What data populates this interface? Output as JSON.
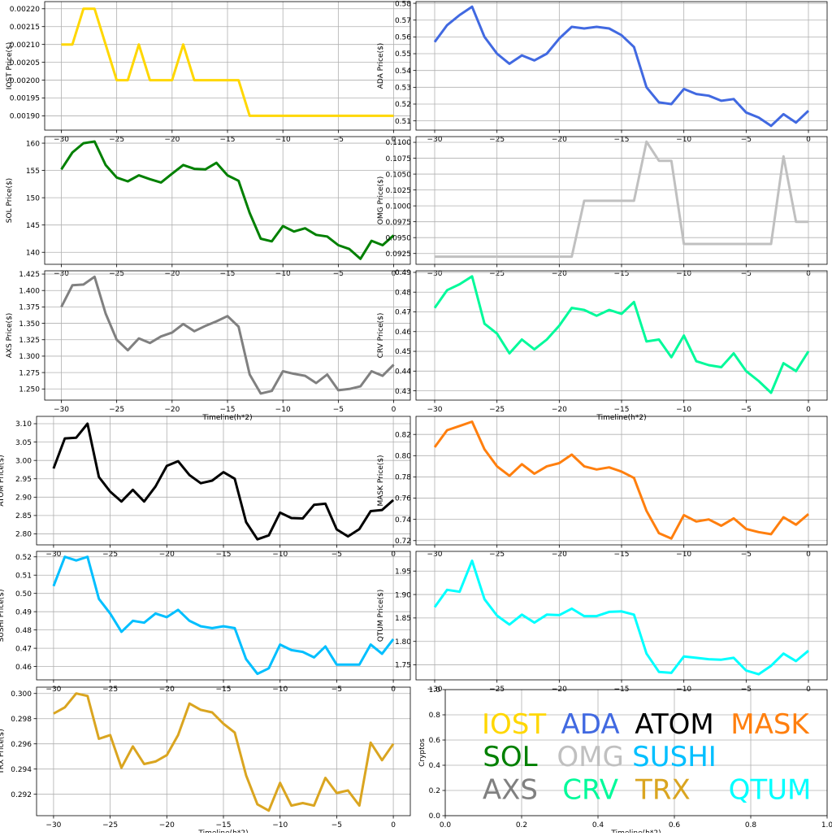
{
  "chart_data": [
    {
      "type": "line",
      "ylabel": "IOST Price($)",
      "xlabel": "",
      "color": "#FFD700",
      "xlim": [
        -31.5,
        1.5
      ],
      "ylim": [
        0.00186,
        0.00222
      ],
      "xticks": [
        -30,
        -25,
        -20,
        -15,
        -10,
        -5,
        0
      ],
      "xtick_labels": [
        "−30",
        "−25",
        "−20",
        "−15",
        "−10",
        "−5",
        "0"
      ],
      "yticks": [
        0.0019,
        0.00195,
        0.002,
        0.00205,
        0.0021,
        0.00215,
        0.0022
      ],
      "ytick_labels": [
        "0.00190",
        "0.00195",
        "0.00200",
        "0.00205",
        "0.00210",
        "0.00215",
        "0.00220"
      ],
      "x": [
        -30,
        -29,
        -28,
        -27,
        -26,
        -25,
        -24,
        -23,
        -22,
        -21,
        -20,
        -19,
        -18,
        -17,
        -16,
        -15,
        -14,
        -13,
        -12,
        -11,
        -10,
        -9,
        -8,
        -7,
        -6,
        -5,
        -4,
        -3,
        -2,
        -1,
        0
      ],
      "y": [
        0.0021,
        0.0021,
        0.0022,
        0.0022,
        0.0021,
        0.002,
        0.002,
        0.0021,
        0.002,
        0.002,
        0.002,
        0.0021,
        0.002,
        0.002,
        0.002,
        0.002,
        0.002,
        0.0019,
        0.0019,
        0.0019,
        0.0019,
        0.0019,
        0.0019,
        0.0019,
        0.0019,
        0.0019,
        0.0019,
        0.0019,
        0.0019,
        0.0019,
        0.0019
      ]
    },
    {
      "type": "line",
      "ylabel": "ADA Price($)",
      "xlabel": "",
      "color": "#4169E1",
      "xlim": [
        -31.5,
        1.5
      ],
      "ylim": [
        0.5045,
        0.581
      ],
      "xticks": [
        -30,
        -25,
        -20,
        -15,
        -10,
        -5,
        0
      ],
      "xtick_labels": [
        "−30",
        "−25",
        "−20",
        "−15",
        "−10",
        "−5",
        "0"
      ],
      "yticks": [
        0.51,
        0.52,
        0.53,
        0.54,
        0.55,
        0.56,
        0.57,
        0.58
      ],
      "ytick_labels": [
        "0.51",
        "0.52",
        "0.53",
        "0.54",
        "0.55",
        "0.56",
        "0.57",
        "0.58"
      ],
      "x": [
        -30,
        -29,
        -28,
        -27,
        -26,
        -25,
        -24,
        -23,
        -22,
        -21,
        -20,
        -19,
        -18,
        -17,
        -16,
        -15,
        -14,
        -13,
        -12,
        -11,
        -10,
        -9,
        -8,
        -7,
        -6,
        -5,
        -4,
        -3,
        -2,
        -1,
        0
      ],
      "y": [
        0.557,
        0.567,
        0.573,
        0.578,
        0.56,
        0.55,
        0.544,
        0.549,
        0.546,
        0.55,
        0.559,
        0.566,
        0.565,
        0.566,
        0.565,
        0.561,
        0.554,
        0.53,
        0.521,
        0.52,
        0.529,
        0.526,
        0.525,
        0.522,
        0.523,
        0.515,
        0.512,
        0.507,
        0.514,
        0.509,
        0.516
      ]
    },
    {
      "type": "line",
      "ylabel": "SOL Price($)",
      "xlabel": "",
      "color": "#008000",
      "xlim": [
        -31.5,
        1.5
      ],
      "ylim": [
        137.8,
        161.2
      ],
      "xticks": [
        -30,
        -25,
        -20,
        -15,
        -10,
        -5,
        0
      ],
      "xtick_labels": [
        "−30",
        "−25",
        "−20",
        "−15",
        "−10",
        "−5",
        "0"
      ],
      "yticks": [
        140,
        145,
        150,
        155,
        160
      ],
      "ytick_labels": [
        "140",
        "145",
        "150",
        "155",
        "160"
      ],
      "x": [
        -30,
        -29,
        -28,
        -27,
        -26,
        -25,
        -24,
        -23,
        -22,
        -21,
        -20,
        -19,
        -18,
        -17,
        -16,
        -15,
        -14,
        -13,
        -12,
        -11,
        -10,
        -9,
        -8,
        -7,
        -6,
        -5,
        -4,
        -3,
        -2,
        -1,
        0
      ],
      "y": [
        155.2,
        158.3,
        160.0,
        160.3,
        156.0,
        153.7,
        153.0,
        154.1,
        153.4,
        152.8,
        154.4,
        156.0,
        155.3,
        155.2,
        156.4,
        154.1,
        153.1,
        147.2,
        142.5,
        142.0,
        144.8,
        143.8,
        144.4,
        143.2,
        142.9,
        141.3,
        140.6,
        138.8,
        142.1,
        141.3,
        143.1
      ]
    },
    {
      "type": "line",
      "ylabel": "OMG Price($)",
      "xlabel": "",
      "color": "#C0C0C0",
      "xlim": [
        -31.5,
        1.5
      ],
      "ylim": [
        0.0908,
        0.1109
      ],
      "xticks": [
        -30,
        -25,
        -20,
        -15,
        -10,
        -5,
        0
      ],
      "xtick_labels": [
        "−30",
        "−25",
        "−20",
        "−15",
        "−10",
        "−5",
        "0"
      ],
      "yticks": [
        0.0925,
        0.095,
        0.0975,
        0.1,
        0.1025,
        0.105,
        0.1075,
        0.11
      ],
      "ytick_labels": [
        "0.0925",
        "0.0950",
        "0.0975",
        "0.1000",
        "0.1025",
        "0.1050",
        "0.1075",
        "0.1100"
      ],
      "x": [
        -30,
        -29,
        -28,
        -27,
        -26,
        -25,
        -24,
        -23,
        -22,
        -21,
        -20,
        -19,
        -18,
        -17,
        -16,
        -15,
        -14,
        -13,
        -12,
        -11,
        -10,
        -9,
        -8,
        -7,
        -6,
        -5,
        -4,
        -3,
        -2,
        -1,
        0
      ],
      "y": [
        0.092,
        0.092,
        0.092,
        0.092,
        0.092,
        0.092,
        0.092,
        0.092,
        0.092,
        0.092,
        0.092,
        0.092,
        0.1008,
        0.1008,
        0.1008,
        0.1008,
        0.1008,
        0.1101,
        0.1071,
        0.1071,
        0.094,
        0.094,
        0.094,
        0.094,
        0.094,
        0.094,
        0.094,
        0.094,
        0.1078,
        0.0975,
        0.0975
      ]
    },
    {
      "type": "line",
      "ylabel": "AXS Price($)",
      "xlabel": "Timeline(h*2)",
      "color": "#808080",
      "xlim": [
        -31.5,
        1.5
      ],
      "ylim": [
        1.233,
        1.43
      ],
      "xticks": [
        -30,
        -25,
        -20,
        -15,
        -10,
        -5,
        0
      ],
      "xtick_labels": [
        "−30",
        "−25",
        "−20",
        "−15",
        "−10",
        "−5",
        "0"
      ],
      "yticks": [
        1.25,
        1.275,
        1.3,
        1.325,
        1.35,
        1.375,
        1.4,
        1.425
      ],
      "ytick_labels": [
        "1.250",
        "1.275",
        "1.300",
        "1.325",
        "1.350",
        "1.375",
        "1.400",
        "1.425"
      ],
      "x": [
        -30,
        -29,
        -28,
        -27,
        -26,
        -25,
        -24,
        -23,
        -22,
        -21,
        -20,
        -19,
        -18,
        -17,
        -16,
        -15,
        -14,
        -13,
        -12,
        -11,
        -10,
        -9,
        -8,
        -7,
        -6,
        -5,
        -4,
        -3,
        -2,
        -1,
        0
      ],
      "y": [
        1.375,
        1.408,
        1.409,
        1.421,
        1.365,
        1.325,
        1.309,
        1.327,
        1.32,
        1.33,
        1.336,
        1.349,
        1.338,
        1.346,
        1.353,
        1.361,
        1.345,
        1.272,
        1.243,
        1.247,
        1.277,
        1.273,
        1.27,
        1.259,
        1.272,
        1.248,
        1.25,
        1.254,
        1.277,
        1.27,
        1.287
      ]
    },
    {
      "type": "line",
      "ylabel": "CRV Price($)",
      "xlabel": "Timeline(h*2)",
      "color": "#00FA9A",
      "xlim": [
        -31.5,
        1.5
      ],
      "ylim": [
        0.4253,
        0.4908
      ],
      "xticks": [
        -30,
        -25,
        -20,
        -15,
        -10,
        -5,
        0
      ],
      "xtick_labels": [
        "−30",
        "−25",
        "−20",
        "−15",
        "−10",
        "−5",
        "0"
      ],
      "yticks": [
        0.43,
        0.44,
        0.45,
        0.46,
        0.47,
        0.48,
        0.49
      ],
      "ytick_labels": [
        "0.43",
        "0.44",
        "0.45",
        "0.46",
        "0.47",
        "0.48",
        "0.49"
      ],
      "x": [
        -30,
        -29,
        -28,
        -27,
        -26,
        -25,
        -24,
        -23,
        -22,
        -21,
        -20,
        -19,
        -18,
        -17,
        -16,
        -15,
        -14,
        -13,
        -12,
        -11,
        -10,
        -9,
        -8,
        -7,
        -6,
        -5,
        -4,
        -3,
        -2,
        -1,
        0
      ],
      "y": [
        0.472,
        0.481,
        0.484,
        0.488,
        0.464,
        0.459,
        0.449,
        0.456,
        0.451,
        0.456,
        0.463,
        0.472,
        0.471,
        0.468,
        0.471,
        0.469,
        0.475,
        0.455,
        0.456,
        0.447,
        0.458,
        0.445,
        0.443,
        0.442,
        0.449,
        0.44,
        0.435,
        0.429,
        0.444,
        0.44,
        0.45
      ]
    },
    {
      "type": "line",
      "ylabel": "ATOM  Price($)",
      "xlabel": "",
      "color": "#000000",
      "xlim": [
        -31.5,
        1.5
      ],
      "ylim": [
        2.77,
        3.12
      ],
      "xticks": [
        -30,
        -25,
        -20,
        -15,
        -10,
        -5,
        0
      ],
      "xtick_labels": [
        "−30",
        "−25",
        "−20",
        "−15",
        "−10",
        "−5",
        "0"
      ],
      "yticks": [
        2.8,
        2.85,
        2.9,
        2.95,
        3.0,
        3.05,
        3.1
      ],
      "ytick_labels": [
        "2.80",
        "2.85",
        "2.90",
        "2.95",
        "3.00",
        "3.05",
        "3.10"
      ],
      "x": [
        -30,
        -29,
        -28,
        -27,
        -26,
        -25,
        -24,
        -23,
        -22,
        -21,
        -20,
        -19,
        -18,
        -17,
        -16,
        -15,
        -14,
        -13,
        -12,
        -11,
        -10,
        -9,
        -8,
        -7,
        -6,
        -5,
        -4,
        -3,
        -2,
        -1,
        0
      ],
      "y": [
        2.978,
        3.06,
        3.062,
        3.1,
        2.955,
        2.915,
        2.888,
        2.92,
        2.888,
        2.929,
        2.985,
        2.998,
        2.96,
        2.938,
        2.945,
        2.968,
        2.95,
        2.832,
        2.785,
        2.796,
        2.858,
        2.843,
        2.842,
        2.879,
        2.882,
        2.812,
        2.793,
        2.813,
        2.862,
        2.865,
        2.892
      ]
    },
    {
      "type": "line",
      "ylabel": "MASK  Price($)",
      "xlabel": "",
      "color": "#FF7F0E",
      "xlim": [
        -31.5,
        1.5
      ],
      "ylim": [
        0.716,
        0.837
      ],
      "xticks": [
        -30,
        -25,
        -20,
        -15,
        -10,
        -5,
        0
      ],
      "xtick_labels": [
        "−30",
        "−25",
        "−20",
        "−15",
        "−10",
        "−5",
        "0"
      ],
      "yticks": [
        0.72,
        0.74,
        0.76,
        0.78,
        0.8,
        0.82
      ],
      "ytick_labels": [
        "0.72",
        "0.74",
        "0.76",
        "0.78",
        "0.80",
        "0.82"
      ],
      "x": [
        -30,
        -29,
        -28,
        -27,
        -26,
        -25,
        -24,
        -23,
        -22,
        -21,
        -20,
        -19,
        -18,
        -17,
        -16,
        -15,
        -14,
        -13,
        -12,
        -11,
        -10,
        -9,
        -8,
        -7,
        -6,
        -5,
        -4,
        -3,
        -2,
        -1,
        0
      ],
      "y": [
        0.808,
        0.824,
        0.828,
        0.832,
        0.806,
        0.79,
        0.781,
        0.792,
        0.783,
        0.79,
        0.793,
        0.801,
        0.79,
        0.787,
        0.789,
        0.785,
        0.779,
        0.748,
        0.727,
        0.722,
        0.744,
        0.738,
        0.74,
        0.734,
        0.741,
        0.731,
        0.728,
        0.726,
        0.742,
        0.735,
        0.745
      ]
    },
    {
      "type": "line",
      "ylabel": "SUSHI  Price($)",
      "xlabel": "",
      "color": "#00BFFF",
      "xlim": [
        -31.5,
        1.5
      ],
      "ylim": [
        0.4527,
        0.523
      ],
      "xticks": [
        -30,
        -25,
        -20,
        -15,
        -10,
        -5,
        0
      ],
      "xtick_labels": [
        "−30",
        "−25",
        "−20",
        "−15",
        "−10",
        "−5",
        "0"
      ],
      "yticks": [
        0.46,
        0.47,
        0.48,
        0.49,
        0.5,
        0.51,
        0.52
      ],
      "ytick_labels": [
        "0.46",
        "0.47",
        "0.48",
        "0.49",
        "0.50",
        "0.51",
        "0.52"
      ],
      "x": [
        -30,
        -29,
        -28,
        -27,
        -26,
        -25,
        -24,
        -23,
        -22,
        -21,
        -20,
        -19,
        -18,
        -17,
        -16,
        -15,
        -14,
        -13,
        -12,
        -11,
        -10,
        -9,
        -8,
        -7,
        -6,
        -5,
        -4,
        -3,
        -2,
        -1,
        0
      ],
      "y": [
        0.504,
        0.52,
        0.518,
        0.52,
        0.497,
        0.489,
        0.479,
        0.485,
        0.484,
        0.489,
        0.487,
        0.491,
        0.485,
        0.482,
        0.481,
        0.482,
        0.481,
        0.464,
        0.456,
        0.459,
        0.472,
        0.469,
        0.468,
        0.465,
        0.471,
        0.461,
        0.461,
        0.461,
        0.472,
        0.467,
        0.475
      ]
    },
    {
      "type": "line",
      "ylabel": "QTUM Price($)",
      "xlabel": "",
      "color": "#00FFFF",
      "xlim": [
        -31.5,
        1.5
      ],
      "ylim": [
        1.718,
        1.992
      ],
      "xticks": [
        -30,
        -25,
        -20,
        -15,
        -10,
        -5,
        0
      ],
      "xtick_labels": [
        "−30",
        "−25",
        "−20",
        "−15",
        "−10",
        "−5",
        "0"
      ],
      "yticks": [
        1.75,
        1.8,
        1.85,
        1.9,
        1.95
      ],
      "ytick_labels": [
        "1.75",
        "1.80",
        "1.85",
        "1.90",
        "1.95"
      ],
      "x": [
        -30,
        -29,
        -28,
        -27,
        -26,
        -25,
        -24,
        -23,
        -22,
        -21,
        -20,
        -19,
        -18,
        -17,
        -16,
        -15,
        -14,
        -13,
        -12,
        -11,
        -10,
        -9,
        -8,
        -7,
        -6,
        -5,
        -4,
        -3,
        -2,
        -1,
        0
      ],
      "y": [
        1.873,
        1.91,
        1.906,
        1.972,
        1.89,
        1.855,
        1.836,
        1.857,
        1.84,
        1.857,
        1.856,
        1.87,
        1.854,
        1.854,
        1.863,
        1.864,
        1.857,
        1.774,
        1.735,
        1.733,
        1.768,
        1.765,
        1.762,
        1.761,
        1.765,
        1.738,
        1.73,
        1.748,
        1.774,
        1.758,
        1.78
      ]
    },
    {
      "type": "line",
      "ylabel": "TRX Price($)",
      "xlabel": "Timeline(h*2)",
      "color": "#DAA520",
      "xlim": [
        -31.5,
        1.5
      ],
      "ylim": [
        0.2903,
        0.3005
      ],
      "xticks": [
        -30,
        -25,
        -20,
        -15,
        -10,
        -5,
        0
      ],
      "xtick_labels": [
        "−30",
        "−25",
        "−20",
        "−15",
        "−10",
        "−5",
        "0"
      ],
      "yticks": [
        0.292,
        0.294,
        0.296,
        0.298,
        0.3
      ],
      "ytick_labels": [
        "0.292",
        "0.294",
        "0.296",
        "0.298",
        "0.300"
      ],
      "x": [
        -30,
        -29,
        -28,
        -27,
        -26,
        -25,
        -24,
        -23,
        -22,
        -21,
        -20,
        -19,
        -18,
        -17,
        -16,
        -15,
        -14,
        -13,
        -12,
        -11,
        -10,
        -9,
        -8,
        -7,
        -6,
        -5,
        -4,
        -3,
        -2,
        -1,
        0
      ],
      "y": [
        0.2984,
        0.2989,
        0.3,
        0.2998,
        0.2964,
        0.2967,
        0.2941,
        0.2958,
        0.2944,
        0.2946,
        0.2951,
        0.2967,
        0.2992,
        0.2987,
        0.2985,
        0.2976,
        0.2969,
        0.2935,
        0.2912,
        0.2907,
        0.2929,
        0.2911,
        0.2913,
        0.2911,
        0.2933,
        0.2921,
        0.2923,
        0.2911,
        0.2961,
        0.2947,
        0.296
      ]
    },
    {
      "type": "scatter",
      "ylabel": "Cryptos",
      "xlabel": "Timeline(h*2)",
      "xlim": [
        0,
        1
      ],
      "ylim": [
        0,
        1
      ],
      "xticks": [
        0,
        0.2,
        0.4,
        0.6,
        0.8,
        1.0
      ],
      "xtick_labels": [
        "0.0",
        "0.2",
        "0.4",
        "0.6",
        "0.8",
        "1.0"
      ],
      "yticks": [
        0,
        0.2,
        0.4,
        0.6,
        0.8,
        1.0
      ],
      "ytick_labels": [
        "0.0",
        "0.2",
        "0.4",
        "0.6",
        "0.8",
        "1.0"
      ],
      "labels": [
        {
          "text": "IOST",
          "x": 0.18,
          "y": 0.73,
          "color": "#FFD700"
        },
        {
          "text": "ADA",
          "x": 0.38,
          "y": 0.73,
          "color": "#4169E1"
        },
        {
          "text": "ATOM",
          "x": 0.6,
          "y": 0.73,
          "color": "#000000"
        },
        {
          "text": "MASK",
          "x": 0.85,
          "y": 0.73,
          "color": "#FF7F0E"
        },
        {
          "text": "SOL",
          "x": 0.17,
          "y": 0.47,
          "color": "#008000"
        },
        {
          "text": "OMG",
          "x": 0.38,
          "y": 0.47,
          "color": "#C0C0C0"
        },
        {
          "text": "SUSHI",
          "x": 0.6,
          "y": 0.47,
          "color": "#00BFFF"
        },
        {
          "text": "AXS",
          "x": 0.17,
          "y": 0.21,
          "color": "#808080"
        },
        {
          "text": "CRV",
          "x": 0.38,
          "y": 0.21,
          "color": "#00FA9A"
        },
        {
          "text": "TRX",
          "x": 0.57,
          "y": 0.21,
          "color": "#DAA520"
        },
        {
          "text": "QTUM",
          "x": 0.85,
          "y": 0.21,
          "color": "#00FFFF"
        }
      ]
    }
  ]
}
